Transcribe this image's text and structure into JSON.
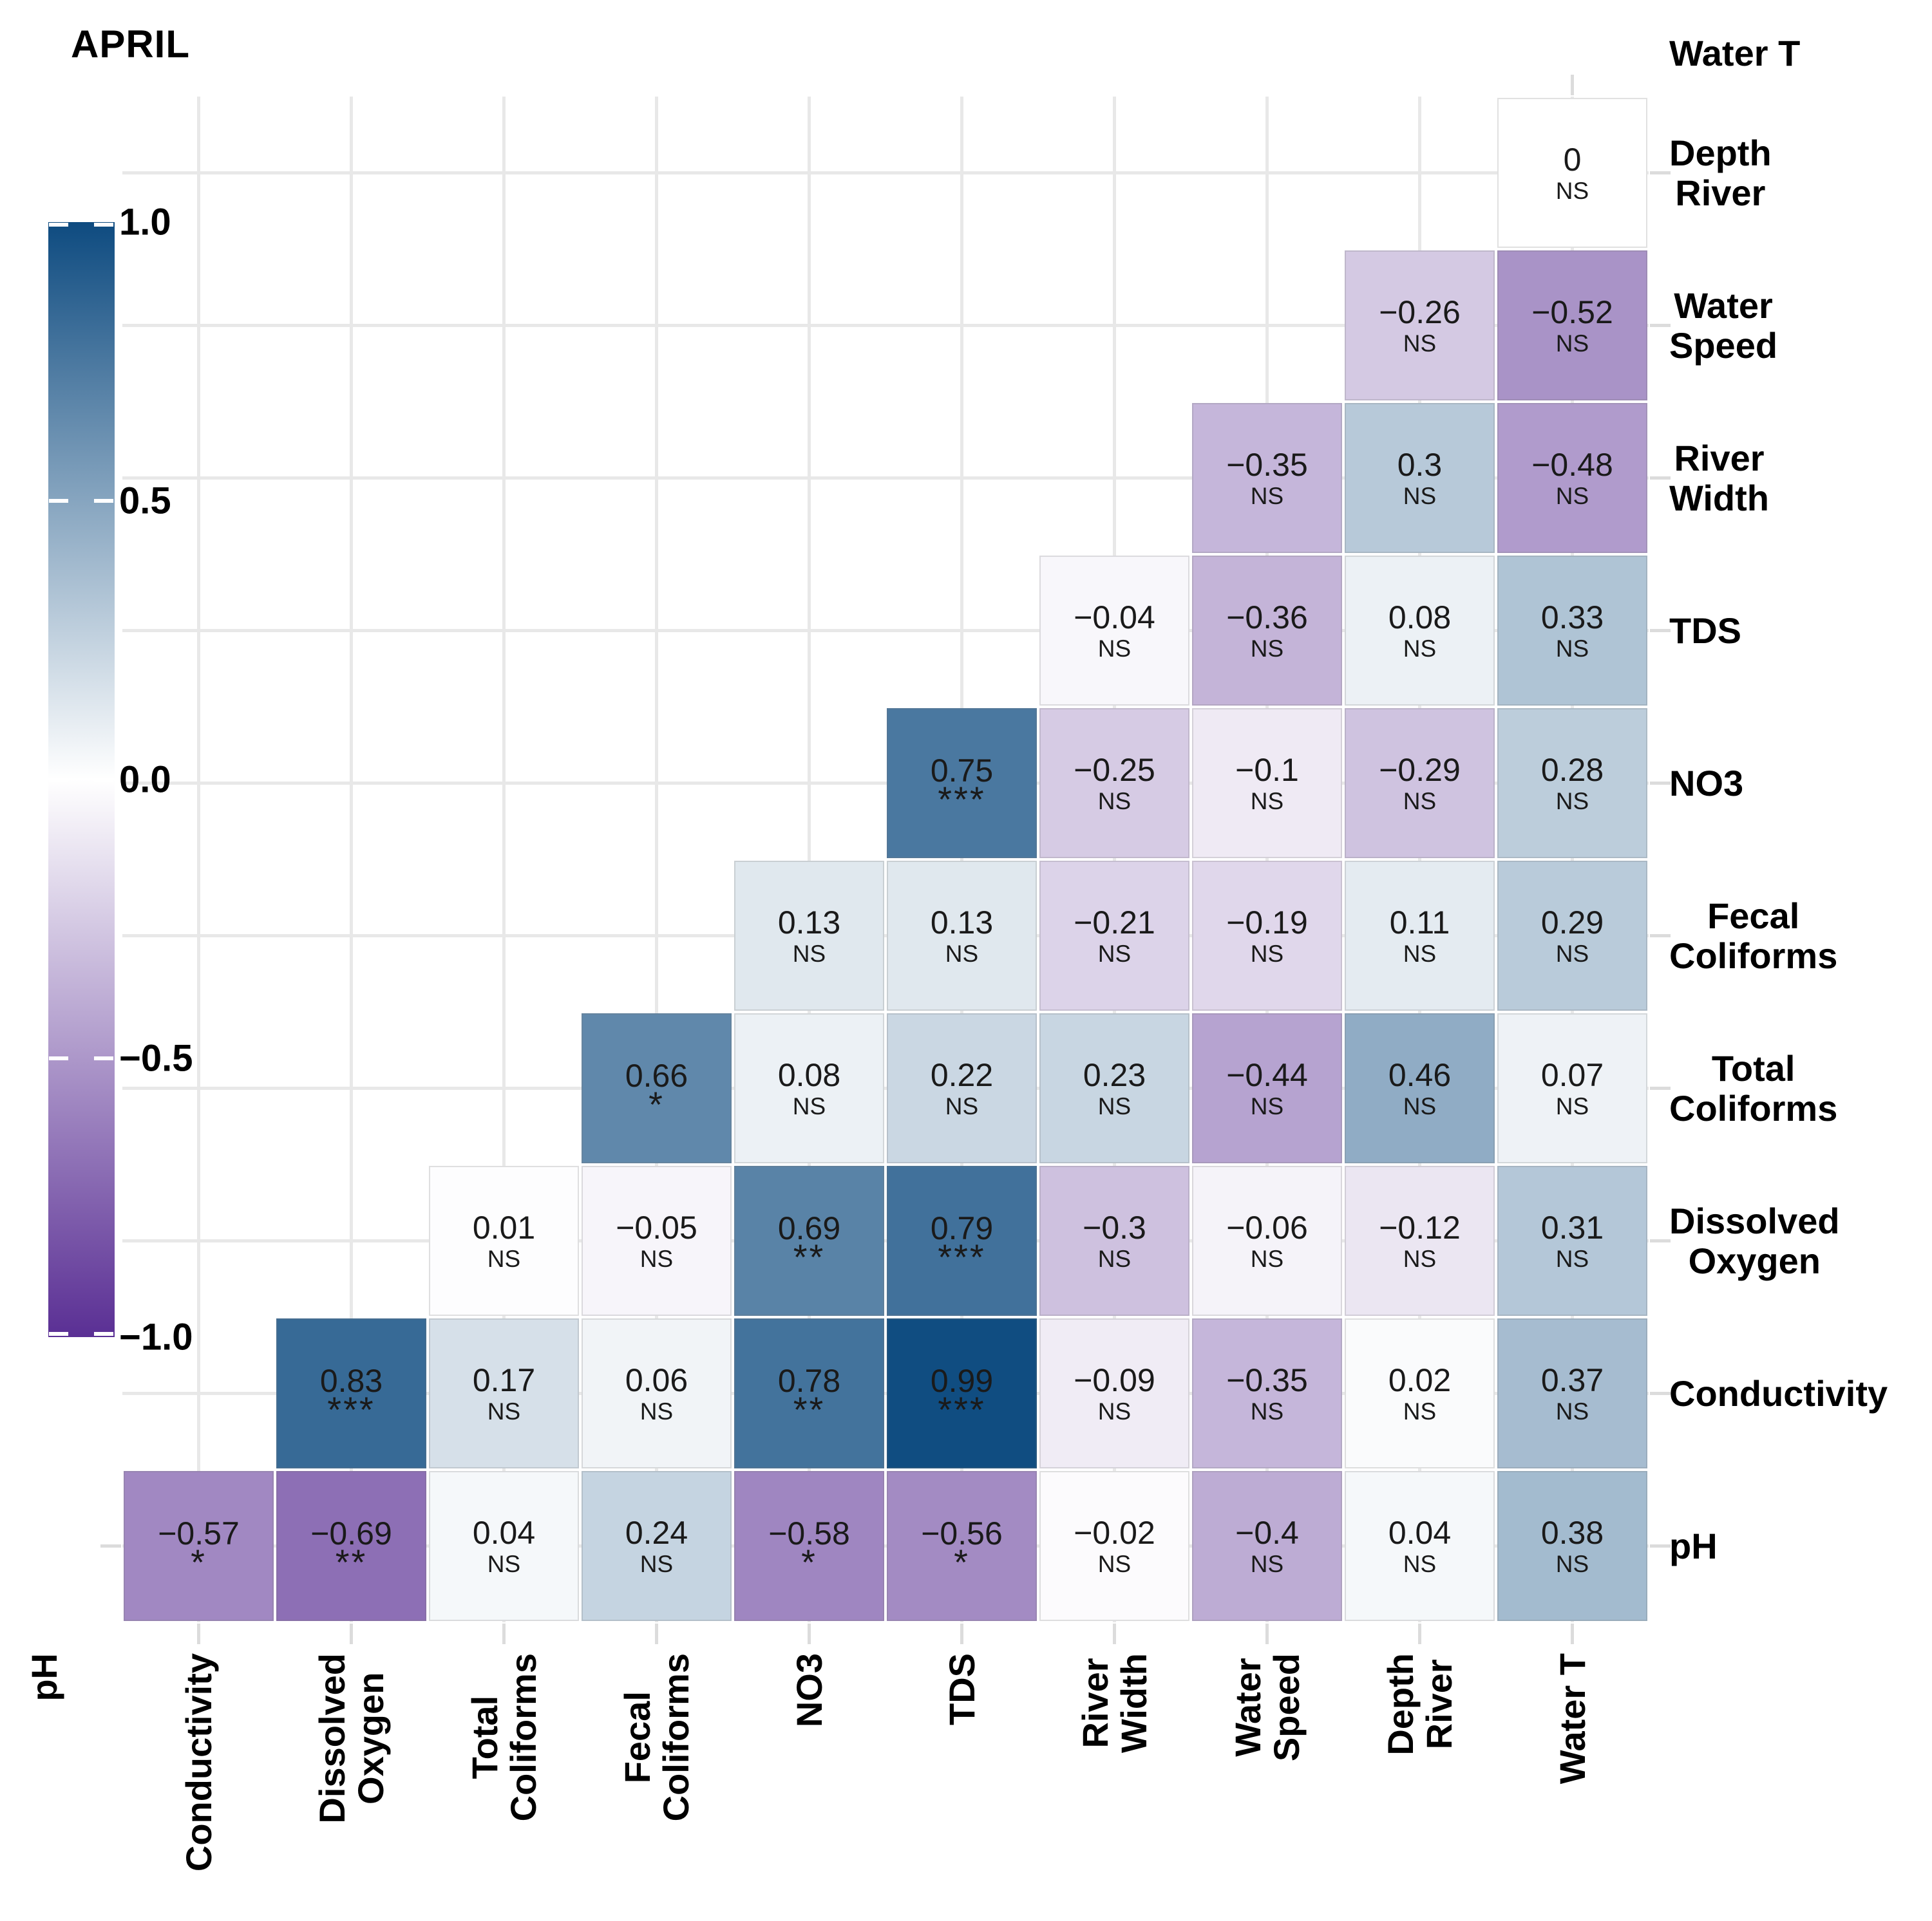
{
  "title": "APRIL",
  "chart_data": {
    "type": "heatmap",
    "subtype": "upper-triangle-correlation-matrix",
    "title": "APRIL",
    "columns": [
      "Conductivity",
      "Dissolved Oxygen",
      "Total Coliforms",
      "Fecal Coliforms",
      "NO3",
      "TDS",
      "River Width",
      "Water Speed",
      "Depth River",
      "Water T"
    ],
    "rows": [
      "Depth River",
      "Water Speed",
      "River Width",
      "TDS",
      "NO3",
      "Fecal Coliforms",
      "Total Coliforms",
      "Dissolved Oxygen",
      "Conductivity",
      "pH"
    ],
    "corner_labels": {
      "top_right": "Water T",
      "bottom_left": "pH"
    },
    "label_lines": {
      "pH": [
        "pH"
      ],
      "Conductivity": [
        "Conductivity"
      ],
      "Dissolved Oxygen": [
        "Dissolved",
        "Oxygen"
      ],
      "Total Coliforms": [
        "Total",
        "Coliforms"
      ],
      "Fecal Coliforms": [
        "Fecal",
        "Coliforms"
      ],
      "NO3": [
        "NO3"
      ],
      "TDS": [
        "TDS"
      ],
      "River Width": [
        "River",
        "Width"
      ],
      "Water Speed": [
        "Water",
        "Speed"
      ],
      "Depth River": [
        "Depth",
        "River"
      ],
      "Water T": [
        "Water T"
      ]
    },
    "colorscale": {
      "min": -1,
      "max": 1,
      "min_color": "#5a2f94",
      "mid_color": "#ffffff",
      "max_color": "#0e4b80",
      "legend_tick_labels": [
        "1.0",
        "0.5",
        "0.0",
        "−0.5",
        "−1.0"
      ],
      "legend_tick_values": [
        1,
        0.5,
        0,
        -0.5,
        -1
      ]
    },
    "cells": [
      {
        "row": "Depth River",
        "col": "Water T",
        "r": 0,
        "label": "0",
        "sig": "NS"
      },
      {
        "row": "Water Speed",
        "col": "Depth River",
        "r": -0.26,
        "label": "−0.26",
        "sig": "NS"
      },
      {
        "row": "Water Speed",
        "col": "Water T",
        "r": -0.52,
        "label": "−0.52",
        "sig": "NS"
      },
      {
        "row": "River Width",
        "col": "Water Speed",
        "r": -0.35,
        "label": "−0.35",
        "sig": "NS"
      },
      {
        "row": "River Width",
        "col": "Depth River",
        "r": 0.3,
        "label": "0.3",
        "sig": "NS"
      },
      {
        "row": "River Width",
        "col": "Water T",
        "r": -0.48,
        "label": "−0.48",
        "sig": "NS"
      },
      {
        "row": "TDS",
        "col": "River Width",
        "r": -0.04,
        "label": "−0.04",
        "sig": "NS"
      },
      {
        "row": "TDS",
        "col": "Water Speed",
        "r": -0.36,
        "label": "−0.36",
        "sig": "NS"
      },
      {
        "row": "TDS",
        "col": "Depth River",
        "r": 0.08,
        "label": "0.08",
        "sig": "NS"
      },
      {
        "row": "TDS",
        "col": "Water T",
        "r": 0.33,
        "label": "0.33",
        "sig": "NS"
      },
      {
        "row": "NO3",
        "col": "TDS",
        "r": 0.75,
        "label": "0.75",
        "sig": "***"
      },
      {
        "row": "NO3",
        "col": "River Width",
        "r": -0.25,
        "label": "−0.25",
        "sig": "NS"
      },
      {
        "row": "NO3",
        "col": "Water Speed",
        "r": -0.1,
        "label": "−0.1",
        "sig": "NS"
      },
      {
        "row": "NO3",
        "col": "Depth River",
        "r": -0.29,
        "label": "−0.29",
        "sig": "NS"
      },
      {
        "row": "NO3",
        "col": "Water T",
        "r": 0.28,
        "label": "0.28",
        "sig": "NS"
      },
      {
        "row": "Fecal Coliforms",
        "col": "NO3",
        "r": 0.13,
        "label": "0.13",
        "sig": "NS"
      },
      {
        "row": "Fecal Coliforms",
        "col": "TDS",
        "r": 0.13,
        "label": "0.13",
        "sig": "NS"
      },
      {
        "row": "Fecal Coliforms",
        "col": "River Width",
        "r": -0.21,
        "label": "−0.21",
        "sig": "NS"
      },
      {
        "row": "Fecal Coliforms",
        "col": "Water Speed",
        "r": -0.19,
        "label": "−0.19",
        "sig": "NS"
      },
      {
        "row": "Fecal Coliforms",
        "col": "Depth River",
        "r": 0.11,
        "label": "0.11",
        "sig": "NS"
      },
      {
        "row": "Fecal Coliforms",
        "col": "Water T",
        "r": 0.29,
        "label": "0.29",
        "sig": "NS"
      },
      {
        "row": "Total Coliforms",
        "col": "Fecal Coliforms",
        "r": 0.66,
        "label": "0.66",
        "sig": "*"
      },
      {
        "row": "Total Coliforms",
        "col": "NO3",
        "r": 0.08,
        "label": "0.08",
        "sig": "NS"
      },
      {
        "row": "Total Coliforms",
        "col": "TDS",
        "r": 0.22,
        "label": "0.22",
        "sig": "NS"
      },
      {
        "row": "Total Coliforms",
        "col": "River Width",
        "r": 0.23,
        "label": "0.23",
        "sig": "NS"
      },
      {
        "row": "Total Coliforms",
        "col": "Water Speed",
        "r": -0.44,
        "label": "−0.44",
        "sig": "NS"
      },
      {
        "row": "Total Coliforms",
        "col": "Depth River",
        "r": 0.46,
        "label": "0.46",
        "sig": "NS"
      },
      {
        "row": "Total Coliforms",
        "col": "Water T",
        "r": 0.07,
        "label": "0.07",
        "sig": "NS"
      },
      {
        "row": "Dissolved Oxygen",
        "col": "Total Coliforms",
        "r": 0.01,
        "label": "0.01",
        "sig": "NS"
      },
      {
        "row": "Dissolved Oxygen",
        "col": "Fecal Coliforms",
        "r": -0.05,
        "label": "−0.05",
        "sig": "NS"
      },
      {
        "row": "Dissolved Oxygen",
        "col": "NO3",
        "r": 0.69,
        "label": "0.69",
        "sig": "**"
      },
      {
        "row": "Dissolved Oxygen",
        "col": "TDS",
        "r": 0.79,
        "label": "0.79",
        "sig": "***"
      },
      {
        "row": "Dissolved Oxygen",
        "col": "River Width",
        "r": -0.3,
        "label": "−0.3",
        "sig": "NS"
      },
      {
        "row": "Dissolved Oxygen",
        "col": "Water Speed",
        "r": -0.06,
        "label": "−0.06",
        "sig": "NS"
      },
      {
        "row": "Dissolved Oxygen",
        "col": "Depth River",
        "r": -0.12,
        "label": "−0.12",
        "sig": "NS"
      },
      {
        "row": "Dissolved Oxygen",
        "col": "Water T",
        "r": 0.31,
        "label": "0.31",
        "sig": "NS"
      },
      {
        "row": "Conductivity",
        "col": "Dissolved Oxygen",
        "r": 0.83,
        "label": "0.83",
        "sig": "***"
      },
      {
        "row": "Conductivity",
        "col": "Total Coliforms",
        "r": 0.17,
        "label": "0.17",
        "sig": "NS"
      },
      {
        "row": "Conductivity",
        "col": "Fecal Coliforms",
        "r": 0.06,
        "label": "0.06",
        "sig": "NS"
      },
      {
        "row": "Conductivity",
        "col": "NO3",
        "r": 0.78,
        "label": "0.78",
        "sig": "**"
      },
      {
        "row": "Conductivity",
        "col": "TDS",
        "r": 0.99,
        "label": "0.99",
        "sig": "***"
      },
      {
        "row": "Conductivity",
        "col": "River Width",
        "r": -0.09,
        "label": "−0.09",
        "sig": "NS"
      },
      {
        "row": "Conductivity",
        "col": "Water Speed",
        "r": -0.35,
        "label": "−0.35",
        "sig": "NS"
      },
      {
        "row": "Conductivity",
        "col": "Depth River",
        "r": 0.02,
        "label": "0.02",
        "sig": "NS"
      },
      {
        "row": "Conductivity",
        "col": "Water T",
        "r": 0.37,
        "label": "0.37",
        "sig": "NS"
      },
      {
        "row": "pH",
        "col": "Conductivity",
        "r": -0.57,
        "label": "−0.57",
        "sig": "*"
      },
      {
        "row": "pH",
        "col": "Dissolved Oxygen",
        "r": -0.69,
        "label": "−0.69",
        "sig": "**"
      },
      {
        "row": "pH",
        "col": "Total Coliforms",
        "r": 0.04,
        "label": "0.04",
        "sig": "NS"
      },
      {
        "row": "pH",
        "col": "Fecal Coliforms",
        "r": 0.24,
        "label": "0.24",
        "sig": "NS"
      },
      {
        "row": "pH",
        "col": "NO3",
        "r": -0.58,
        "label": "−0.58",
        "sig": "*"
      },
      {
        "row": "pH",
        "col": "TDS",
        "r": -0.56,
        "label": "−0.56",
        "sig": "*"
      },
      {
        "row": "pH",
        "col": "River Width",
        "r": -0.02,
        "label": "−0.02",
        "sig": "NS"
      },
      {
        "row": "pH",
        "col": "Water Speed",
        "r": -0.4,
        "label": "−0.4",
        "sig": "NS"
      },
      {
        "row": "pH",
        "col": "Depth River",
        "r": 0.04,
        "label": "0.04",
        "sig": "NS"
      },
      {
        "row": "pH",
        "col": "Water T",
        "r": 0.38,
        "label": "0.38",
        "sig": "NS"
      }
    ]
  }
}
